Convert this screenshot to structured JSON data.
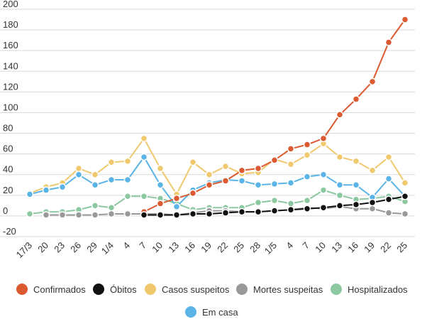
{
  "chart_data": {
    "type": "line",
    "title": "",
    "xlabel": "",
    "ylabel": "",
    "ylim": [
      -20,
      200
    ],
    "yticks": [
      -20,
      0,
      20,
      40,
      60,
      80,
      100,
      120,
      140,
      160,
      180,
      200
    ],
    "ytick_labels": [
      "-20",
      "0",
      "20",
      "40",
      "60",
      "80",
      "100",
      "120",
      "140",
      "160",
      "180",
      "200"
    ],
    "grid": true,
    "legend_position": "bottom",
    "categories": [
      "17/3",
      "20",
      "23",
      "26",
      "29",
      "1/4",
      "4",
      "7",
      "10",
      "13",
      "16",
      "19",
      "22",
      "25",
      "28",
      "1/5",
      "4",
      "7",
      "10",
      "13",
      "16",
      "19",
      "22",
      "25"
    ],
    "series": [
      {
        "name": "Confirmados",
        "color": "#dc5a32",
        "values": [
          null,
          null,
          null,
          null,
          null,
          null,
          null,
          4,
          12,
          17,
          22,
          30,
          34,
          44,
          46,
          54,
          65,
          69,
          75,
          98,
          113,
          130,
          168,
          190
        ]
      },
      {
        "name": "Óbitos",
        "color": "#111111",
        "values": [
          null,
          null,
          null,
          null,
          null,
          null,
          null,
          1,
          1,
          1,
          2,
          2,
          3,
          4,
          4,
          5,
          6,
          7,
          8,
          10,
          11,
          13,
          16,
          19
        ]
      },
      {
        "name": "Casos suspeitos",
        "color": "#f0c86e",
        "values": [
          22,
          28,
          32,
          46,
          40,
          52,
          53,
          75,
          46,
          21,
          52,
          40,
          48,
          41,
          42,
          55,
          50,
          59,
          70,
          57,
          53,
          44,
          57,
          32
        ]
      },
      {
        "name": "Mortes suspeitas",
        "color": "#999999",
        "values": [
          null,
          1,
          1,
          1,
          1,
          2,
          2,
          2,
          2,
          1,
          3,
          5,
          5,
          4,
          4,
          5,
          6,
          8,
          7,
          9,
          7,
          7,
          3,
          2
        ]
      },
      {
        "name": "Hospitalizados",
        "color": "#8cc8a0",
        "values": [
          2,
          4,
          4,
          6,
          10,
          8,
          19,
          19,
          17,
          12,
          6,
          8,
          8,
          8,
          13,
          15,
          12,
          15,
          25,
          20,
          16,
          17,
          19,
          14
        ]
      },
      {
        "name": "Em casa",
        "color": "#5ab4e6",
        "values": [
          21,
          25,
          28,
          40,
          30,
          35,
          35,
          57,
          30,
          9,
          25,
          32,
          35,
          34,
          30,
          31,
          32,
          38,
          40,
          30,
          30,
          18,
          36,
          19
        ]
      }
    ]
  }
}
